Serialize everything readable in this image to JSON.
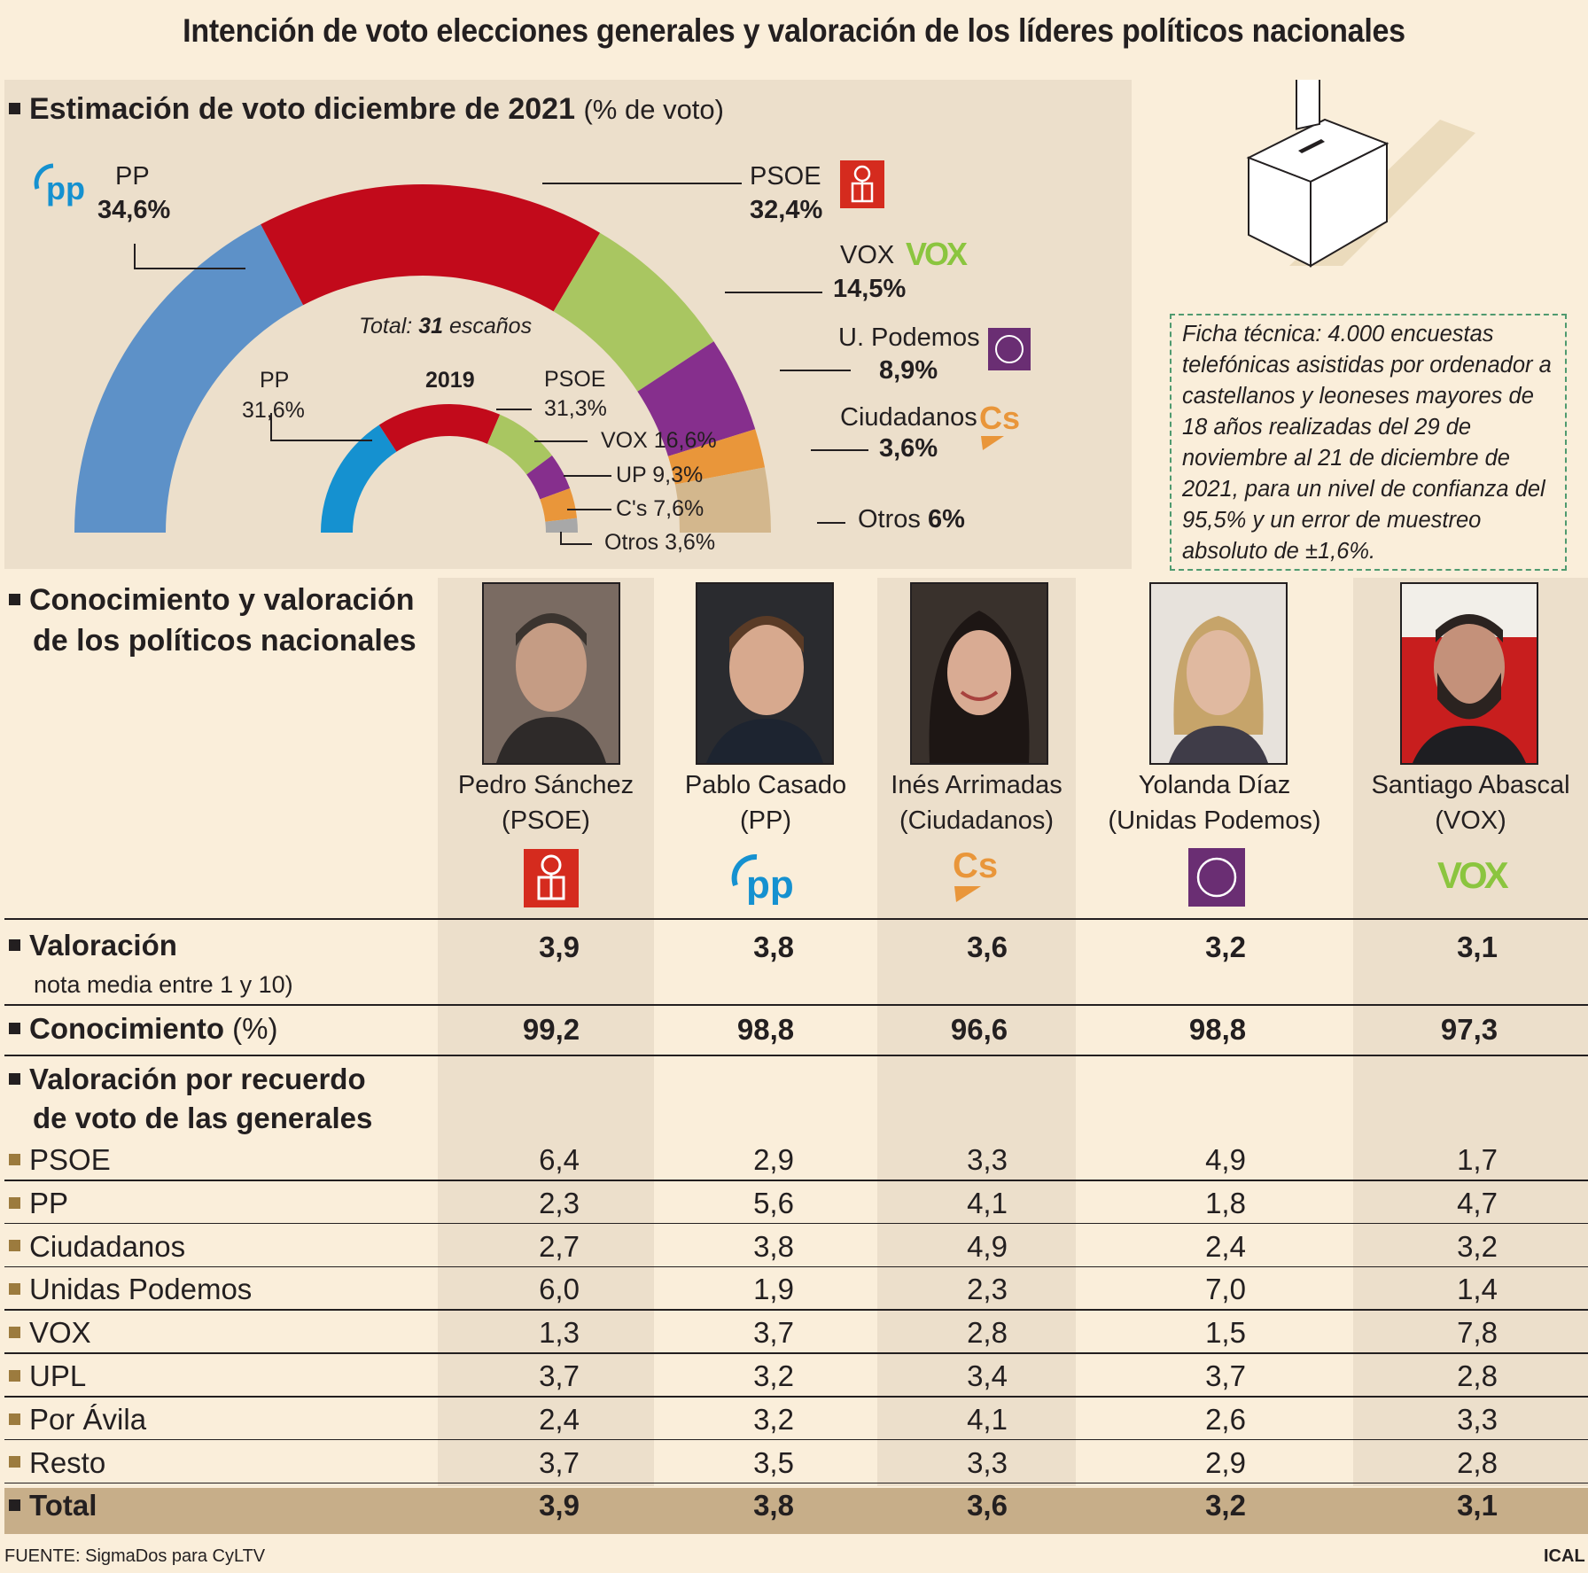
{
  "title": "Intención de voto elecciones generales y valoración de los líderes políticos nacionales",
  "section1": {
    "heading": "Estimación de voto diciembre de 2021",
    "heading_unit": "(% de voto)",
    "total_prefix": "Total:",
    "total_value": "31",
    "total_suffix": "escaños",
    "year_2019": "2019"
  },
  "chart_data": [
    {
      "type": "pie",
      "title": "Estimación de voto diciembre de 2021",
      "unit": "% de voto",
      "categories": [
        "PP",
        "PSOE",
        "VOX",
        "U. Podemos",
        "Ciudadanos",
        "Otros"
      ],
      "values": [
        34.6,
        32.4,
        14.5,
        8.9,
        3.6,
        6
      ],
      "labels": [
        "34,6%",
        "32,4%",
        "14,5%",
        "8,9%",
        "3,6%",
        "6%"
      ],
      "colors": [
        "#5d91c8",
        "#c20a1b",
        "#a9c661",
        "#862f8d",
        "#e9963a",
        "#d3b78d"
      ]
    },
    {
      "type": "pie",
      "title": "2019",
      "categories": [
        "PP",
        "PSOE",
        "VOX",
        "UP",
        "C's",
        "Otros"
      ],
      "values": [
        31.6,
        31.3,
        16.6,
        9.3,
        7.6,
        3.6
      ],
      "labels": [
        "31,6%",
        "31,3%",
        "16,6%",
        "9,3%",
        "7,6%",
        "3,6%"
      ],
      "colors": [
        "#1591d0",
        "#c20a1b",
        "#a9c661",
        "#862f8d",
        "#e9963a",
        "#a8a8a8"
      ]
    },
    {
      "type": "table",
      "title": "Conocimiento y valoración de los políticos nacionales",
      "columns": [
        "Pedro Sánchez (PSOE)",
        "Pablo Casado (PP)",
        "Inés Arrimadas (Ciudadanos)",
        "Yolanda Díaz (Unidas Podemos)",
        "Santiago Abascal (VOX)"
      ],
      "rows": [
        {
          "label": "Valoración",
          "values": [
            "3,9",
            "3,8",
            "3,6",
            "3,2",
            "3,1"
          ]
        },
        {
          "label": "Conocimiento (%)",
          "values": [
            "99,2",
            "98,8",
            "96,6",
            "98,8",
            "97,3"
          ]
        },
        {
          "label": "PSOE",
          "values": [
            "6,4",
            "2,9",
            "3,3",
            "4,9",
            "1,7"
          ]
        },
        {
          "label": "PP",
          "values": [
            "2,3",
            "5,6",
            "4,1",
            "1,8",
            "4,7"
          ]
        },
        {
          "label": "Ciudadanos",
          "values": [
            "2,7",
            "3,8",
            "4,9",
            "2,4",
            "3,2"
          ]
        },
        {
          "label": "Unidas Podemos",
          "values": [
            "6,0",
            "1,9",
            "2,3",
            "7,0",
            "1,4"
          ]
        },
        {
          "label": "VOX",
          "values": [
            "1,3",
            "3,7",
            "2,8",
            "1,5",
            "7,8"
          ]
        },
        {
          "label": "UPL",
          "values": [
            "3,7",
            "3,2",
            "3,4",
            "3,7",
            "2,8"
          ]
        },
        {
          "label": "Por Ávila",
          "values": [
            "2,4",
            "3,2",
            "4,1",
            "2,6",
            "3,3"
          ]
        },
        {
          "label": "Resto",
          "values": [
            "3,7",
            "3,5",
            "3,3",
            "2,9",
            "2,8"
          ]
        },
        {
          "label": "Total",
          "values": [
            "3,9",
            "3,8",
            "3,6",
            "3,2",
            "3,1"
          ]
        }
      ]
    }
  ],
  "ficha": "Ficha técnica: 4.000 encuestas telefónicas asistidas por ordenador a castellanos y leoneses mayores de 18 años realizadas del 29 de noviembre al 21 de diciembre de 2021, para un nivel de confianza del 95,5% y un error de muestreo absoluto de ±1,6%.",
  "section2": {
    "heading_l1": "Conocimiento y valoración",
    "heading_l2": "de los políticos nacionales",
    "valoracion_label": "Valoración",
    "valoracion_sub": "nota media entre 1 y 10)",
    "conocimiento_label": "Conocimiento",
    "conocimiento_unit": "(%)",
    "recuerdo_l1": "Valoración por recuerdo",
    "recuerdo_l2": "de voto de las generales"
  },
  "leaders": [
    {
      "name": "Pedro Sánchez",
      "party": "(PSOE)",
      "logo": "psoe-logo"
    },
    {
      "name": "Pablo Casado",
      "party": "(PP)",
      "logo": "pp-logo"
    },
    {
      "name": "Inés Arrimadas",
      "party": "(Ciudadanos)",
      "logo": "cs-logo"
    },
    {
      "name": "Yolanda Díaz",
      "party": "(Unidas Podemos)",
      "logo": "podemos-logo"
    },
    {
      "name": "Santiago Abascal",
      "party": "(VOX)",
      "logo": "vox-logo"
    }
  ],
  "footer": {
    "source": "FUENTE: SigmaDos para CyLTV",
    "credit": "ICAL"
  }
}
